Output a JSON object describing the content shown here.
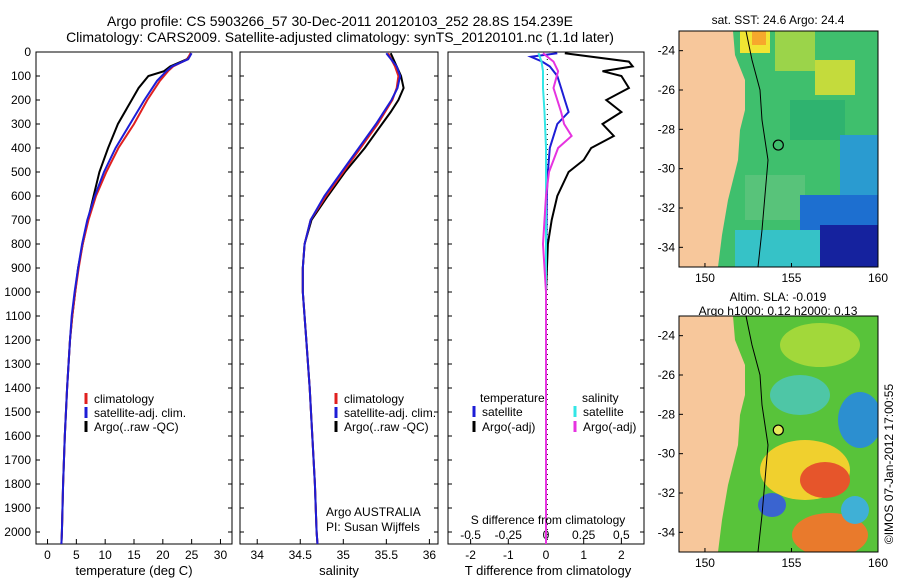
{
  "header": {
    "line1": "Argo profile: CS 5903266_57 30-Dec-2011 20120103_252 28.8S 154.239E",
    "line2": "Climatology: CARS2009. Satellite-adjusted climatology: synTS_20120101.nc (1.1d later)"
  },
  "side_label": "©IMOS 07-Jan-2012 17:00:55",
  "colors": {
    "climatology": "#e0201f",
    "satellite": "#1d1dd6",
    "argo": "#000000",
    "salinity_sat": "#33e6e6",
    "salinity_argo": "#e633e0",
    "land": "#f7c79b"
  },
  "chart_data": [
    {
      "type": "line",
      "id": "temperature",
      "xlabel": "temperature (deg C)",
      "xlim": [
        -2,
        32
      ],
      "xticks": [
        0,
        5,
        10,
        15,
        20,
        25,
        30
      ],
      "xtick_labels": [
        "0",
        "5",
        "10",
        "15",
        "20",
        "25",
        "30"
      ],
      "ylim": [
        0,
        2050
      ],
      "yticks": [
        0,
        100,
        200,
        300,
        400,
        500,
        600,
        700,
        800,
        900,
        1000,
        1100,
        1200,
        1300,
        1400,
        1500,
        1600,
        1700,
        1800,
        1900,
        2000
      ],
      "ytick_labels": [
        "0",
        "100",
        "200",
        "300",
        "400",
        "500",
        "600",
        "700",
        "800",
        "900",
        "1000",
        "1100",
        "1200",
        "1300",
        "1400",
        "1500",
        "1600",
        "1700",
        "1800",
        "1900",
        "2000"
      ],
      "legend": [
        "climatology",
        "satellite-adj. clim.",
        "Argo(..raw -QC)"
      ],
      "series": [
        {
          "name": "climatology",
          "color": "#e0201f",
          "depth": [
            5,
            30,
            60,
            80,
            120,
            200,
            300,
            400,
            500,
            600,
            700,
            800,
            900,
            1000,
            1100,
            1200,
            1400,
            1600,
            1800,
            2000,
            2050
          ],
          "values": [
            24.8,
            24.3,
            21.8,
            20.9,
            19.5,
            17.3,
            15.0,
            12.3,
            10.2,
            8.4,
            7.1,
            6.1,
            5.4,
            4.8,
            4.3,
            3.9,
            3.4,
            3.0,
            2.7,
            2.5,
            2.4
          ]
        },
        {
          "name": "satellite-adj. clim.",
          "color": "#1d1dd6",
          "depth": [
            5,
            30,
            60,
            80,
            120,
            200,
            300,
            400,
            500,
            600,
            700,
            800,
            900,
            1000,
            1100,
            1200,
            1400,
            1600,
            1800,
            2000,
            2050
          ],
          "values": [
            25.0,
            24.4,
            21.6,
            20.6,
            19.0,
            16.8,
            14.3,
            11.8,
            9.8,
            8.2,
            6.9,
            6.0,
            5.3,
            4.7,
            4.2,
            3.9,
            3.4,
            3.0,
            2.7,
            2.5,
            2.4
          ]
        },
        {
          "name": "Argo(..raw -QC)",
          "color": "#000000",
          "depth": [
            5,
            30,
            60,
            80,
            100,
            150,
            200,
            300,
            400,
            500,
            600,
            700,
            800,
            900,
            1000,
            1100,
            1200,
            1400,
            1600,
            1800,
            2000,
            2050
          ],
          "values": [
            24.9,
            24.2,
            21.3,
            20.2,
            17.5,
            15.8,
            14.6,
            12.2,
            10.5,
            9.0,
            8.0,
            7.0,
            6.1,
            5.3,
            4.8,
            4.3,
            3.9,
            3.4,
            3.0,
            2.7,
            2.5,
            2.4
          ]
        }
      ]
    },
    {
      "type": "line",
      "id": "salinity",
      "xlabel": "salinity",
      "xlim": [
        33.8,
        36.1
      ],
      "xticks": [
        34,
        34.5,
        35,
        35.5,
        36
      ],
      "xtick_labels": [
        "34",
        "34.5",
        "35",
        "35.5",
        "36"
      ],
      "ylim": [
        0,
        2050
      ],
      "legend": [
        "climatology",
        "satellite-adj. clim.",
        "Argo(..raw -QC)"
      ],
      "annotation": [
        "Argo AUSTRALIA",
        "PI: Susan Wijffels"
      ],
      "series": [
        {
          "name": "climatology",
          "color": "#e0201f",
          "depth": [
            5,
            60,
            100,
            150,
            200,
            300,
            400,
            500,
            600,
            700,
            800,
            900,
            1000,
            1200,
            1400,
            1600,
            1800,
            2000,
            2050
          ],
          "values": [
            35.52,
            35.6,
            35.64,
            35.62,
            35.57,
            35.4,
            35.2,
            35.0,
            34.8,
            34.62,
            34.55,
            34.53,
            34.53,
            34.57,
            34.61,
            34.64,
            34.67,
            34.69,
            34.7
          ]
        },
        {
          "name": "satellite-adj. clim.",
          "color": "#1d1dd6",
          "depth": [
            5,
            60,
            100,
            150,
            200,
            300,
            400,
            500,
            600,
            700,
            800,
            900,
            1000,
            1200,
            1400,
            1600,
            1800,
            2000,
            2050
          ],
          "values": [
            35.5,
            35.62,
            35.66,
            35.63,
            35.56,
            35.38,
            35.18,
            34.98,
            34.78,
            34.62,
            34.55,
            34.53,
            34.53,
            34.57,
            34.61,
            34.64,
            34.67,
            34.69,
            34.7
          ]
        },
        {
          "name": "Argo(..raw -QC)",
          "color": "#000000",
          "depth": [
            5,
            60,
            100,
            150,
            200,
            250,
            300,
            400,
            500,
            600,
            700,
            800,
            900,
            1000,
            1200,
            1400,
            1600,
            1800,
            2000,
            2050
          ],
          "values": [
            35.55,
            35.62,
            35.67,
            35.7,
            35.64,
            35.55,
            35.45,
            35.25,
            35.02,
            34.82,
            34.63,
            34.55,
            34.53,
            34.53,
            34.57,
            34.61,
            34.64,
            34.67,
            34.69,
            34.7
          ]
        }
      ]
    },
    {
      "type": "line",
      "id": "difference",
      "xlabel": "T difference from climatology",
      "xlabel_top": "S difference from climatology",
      "xlim": [
        -2.6,
        2.6
      ],
      "xticks": [
        -2,
        -1,
        0,
        1,
        2
      ],
      "xtick_labels": [
        "-2",
        "-1",
        "0",
        "1",
        "2"
      ],
      "xticks_s": [
        -0.5,
        -0.25,
        0,
        0.25,
        0.5
      ],
      "xtick_labels_s": [
        "-0.5",
        "-0.25",
        "0",
        "0.25",
        "0.5"
      ],
      "ylim": [
        0,
        2050
      ],
      "legend_t": [
        "temperature",
        "satellite",
        "Argo(-adj)"
      ],
      "legend_s": [
        "salinity",
        "satellite",
        "Argo(-adj)"
      ],
      "series": [
        {
          "name": "satellite",
          "group": "temperature",
          "color": "#1d1dd6",
          "depth": [
            5,
            20,
            40,
            60,
            100,
            150,
            200,
            250,
            300,
            400,
            500,
            600,
            800,
            1000,
            1200,
            1400,
            1600,
            1800,
            2000,
            2050
          ],
          "values": [
            0.3,
            -0.4,
            -0.1,
            0.1,
            0.3,
            0.4,
            0.5,
            0.6,
            0.3,
            0.1,
            0.05,
            0.02,
            0.01,
            0.0,
            0.0,
            0.0,
            0.0,
            0.0,
            0.0,
            0.0
          ]
        },
        {
          "name": "Argo(-adj)",
          "group": "temperature",
          "color": "#000000",
          "depth": [
            5,
            40,
            60,
            80,
            100,
            150,
            200,
            250,
            300,
            350,
            400,
            450,
            500,
            600,
            700,
            800,
            1000,
            1200,
            1400,
            1600,
            1800,
            2000,
            2050
          ],
          "values": [
            0.5,
            2.2,
            2.3,
            1.5,
            2.0,
            2.2,
            1.6,
            2.0,
            1.5,
            1.8,
            1.2,
            1.0,
            0.6,
            0.3,
            0.15,
            0.05,
            0.0,
            0.0,
            0.0,
            0.0,
            0.0,
            0.0,
            0.0
          ]
        },
        {
          "name": "satellite",
          "group": "salinity",
          "color": "#33e6e6",
          "depth": [
            5,
            40,
            80,
            150,
            250,
            400,
            600,
            800,
            1000,
            1200,
            1400,
            1600,
            1800,
            2000,
            2050
          ],
          "values": [
            -0.05,
            -0.03,
            -0.02,
            -0.02,
            -0.01,
            0.0,
            0.0,
            0.0,
            0.0,
            0.0,
            0.0,
            0.0,
            0.0,
            0.0,
            0.0
          ]
        },
        {
          "name": "Argo(-adj)",
          "group": "salinity",
          "color": "#e633e0",
          "depth": [
            5,
            40,
            80,
            150,
            250,
            300,
            350,
            400,
            500,
            600,
            700,
            800,
            1000,
            1200,
            1400,
            1600,
            1800,
            2000,
            2050
          ],
          "values": [
            -0.02,
            0.05,
            0.08,
            0.05,
            0.1,
            0.12,
            0.17,
            0.08,
            0.02,
            0.0,
            -0.01,
            -0.02,
            0.0,
            0.0,
            0.0,
            0.0,
            0.0,
            0.0,
            0.0
          ]
        }
      ]
    },
    {
      "type": "heatmap",
      "id": "sst_map",
      "title": "sat. SST: 24.6 Argo: 24.4",
      "xlim": [
        148.5,
        160
      ],
      "ylim": [
        -35,
        -23
      ],
      "xticks": [
        150,
        155,
        160
      ],
      "xtick_labels": [
        "150",
        "155",
        "160"
      ],
      "yticks": [
        -24,
        -26,
        -28,
        -30,
        -32,
        -34
      ],
      "ytick_labels": [
        "-24",
        "-26",
        "-28",
        "-30",
        "-32",
        "-34"
      ],
      "marker": {
        "lon": 154.239,
        "lat": -28.8
      }
    },
    {
      "type": "heatmap",
      "id": "sla_map",
      "title": "Altim. SLA: -0.019",
      "subtitle": "Argo h1000: 0.12 h2000: 0.13",
      "xlim": [
        148.5,
        160
      ],
      "ylim": [
        -35,
        -23
      ],
      "xticks": [
        150,
        155,
        160
      ],
      "xtick_labels": [
        "150",
        "155",
        "160"
      ],
      "yticks": [
        -24,
        -26,
        -28,
        -30,
        -32,
        -34
      ],
      "ytick_labels": [
        "-24",
        "-26",
        "-28",
        "-30",
        "-32",
        "-34"
      ],
      "marker": {
        "lon": 154.239,
        "lat": -28.8
      }
    }
  ]
}
